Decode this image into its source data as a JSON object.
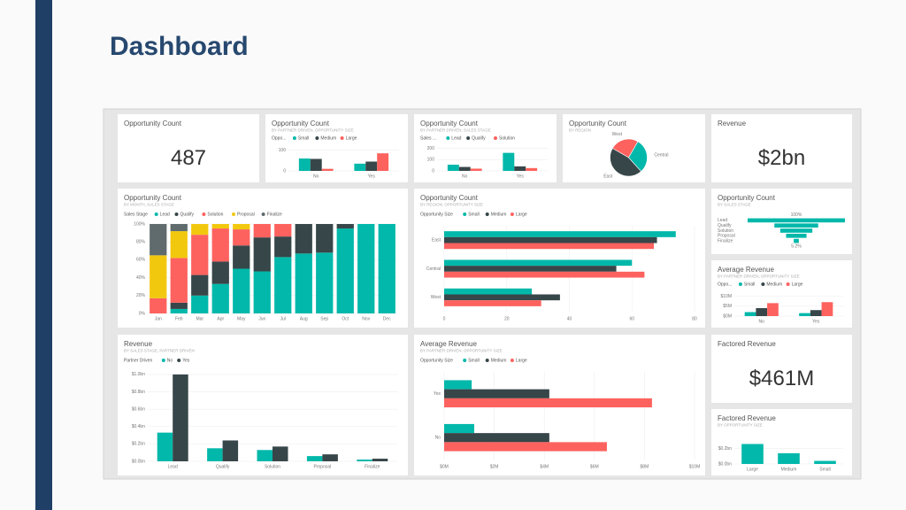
{
  "slide": {
    "title": "Dashboard"
  },
  "tiles": [
    {
      "type": "card",
      "title": "Opportunity Count",
      "value": "487"
    },
    {
      "type": "bar",
      "title": "Opportunity Count",
      "subtitle": "BY PARTNER DRIVEN, OPPORTUNITY SIZE",
      "legend_title": "Oppo...",
      "categories": [
        "No",
        "Yes"
      ],
      "ylim": [
        0,
        120
      ],
      "yticks": [
        0,
        100
      ],
      "series": [
        {
          "name": "Small",
          "color": "#01b8aa",
          "values": [
            60,
            35
          ]
        },
        {
          "name": "Medium",
          "color": "#374649",
          "values": [
            58,
            45
          ]
        },
        {
          "name": "Large",
          "color": "#fd625e",
          "values": [
            10,
            85
          ]
        }
      ]
    },
    {
      "type": "bar",
      "title": "Opportunity Count",
      "subtitle": "BY PARTNER DRIVEN, SALES STAGE",
      "legend_title": "Sales ...",
      "categories": [
        "No",
        "Yes"
      ],
      "ylim": [
        0,
        220
      ],
      "yticks": [
        0,
        100,
        200
      ],
      "series": [
        {
          "name": "Lead",
          "color": "#01b8aa",
          "values": [
            55,
            160
          ]
        },
        {
          "name": "Qualify",
          "color": "#374649",
          "values": [
            35,
            40
          ]
        },
        {
          "name": "Solution",
          "color": "#fd625e",
          "values": [
            20,
            25
          ]
        }
      ]
    },
    {
      "type": "pie",
      "title": "Opportunity Count",
      "subtitle": "BY REGION",
      "categories": [
        "West",
        "Central",
        "East"
      ],
      "values": [
        25,
        30,
        45
      ],
      "colors": [
        "#fd625e",
        "#01b8aa",
        "#374649"
      ]
    },
    {
      "type": "card",
      "title": "Revenue",
      "value": "$2bn"
    },
    {
      "type": "stacked100",
      "title": "Opportunity Count",
      "subtitle": "BY MONTH, SALES STAGE",
      "legend_title": "Sales Stage",
      "categories": [
        "Jan",
        "Feb",
        "Mar",
        "Apr",
        "May",
        "Jun",
        "Jul",
        "Aug",
        "Sep",
        "Oct",
        "Nov",
        "Dec"
      ],
      "ylim": [
        0,
        100
      ],
      "yticks": [
        {
          "value": 0,
          "label": "0%"
        },
        {
          "value": 20,
          "label": "20%"
        },
        {
          "value": 40,
          "label": "40%"
        },
        {
          "value": 60,
          "label": "60%"
        },
        {
          "value": 80,
          "label": "80%"
        },
        {
          "value": 100,
          "label": "100%"
        }
      ],
      "series": [
        {
          "name": "Lead",
          "color": "#01b8aa",
          "values": [
            0,
            5,
            20,
            33,
            50,
            47,
            63,
            67,
            68,
            95,
            100,
            100
          ]
        },
        {
          "name": "Qualify",
          "color": "#374649",
          "values": [
            0,
            7,
            23,
            25,
            26,
            38,
            23,
            33,
            32,
            5,
            0,
            0
          ]
        },
        {
          "name": "Solution",
          "color": "#fd625e",
          "values": [
            17,
            50,
            45,
            37,
            18,
            15,
            14,
            0,
            0,
            0,
            0,
            0
          ]
        },
        {
          "name": "Proposal",
          "color": "#f2c80f",
          "values": [
            48,
            30,
            12,
            5,
            6,
            0,
            0,
            0,
            0,
            0,
            0,
            0
          ]
        },
        {
          "name": "Finalize",
          "color": "#5f6b6d",
          "values": [
            35,
            8,
            0,
            0,
            0,
            0,
            0,
            0,
            0,
            0,
            0,
            0
          ]
        }
      ]
    },
    {
      "type": "hbar",
      "title": "Opportunity Count",
      "subtitle": "BY REGION, OPPORTUNITY SIZE",
      "legend_title": "Opportunity Size",
      "categories": [
        "East",
        "Central",
        "West"
      ],
      "xlim": [
        0,
        80
      ],
      "xticks": [
        0,
        20,
        40,
        60,
        80
      ],
      "series": [
        {
          "name": "Small",
          "color": "#01b8aa",
          "values": [
            74,
            60,
            28
          ]
        },
        {
          "name": "Medium",
          "color": "#374649",
          "values": [
            68,
            55,
            37
          ]
        },
        {
          "name": "Large",
          "color": "#fd625e",
          "values": [
            67,
            64,
            31
          ]
        }
      ]
    },
    {
      "type": "funnel",
      "title": "Opportunity Count",
      "subtitle": "BY SALES STAGE",
      "categories": [
        "Lead",
        "Qualify",
        "Solution",
        "Proposal",
        "Finalize"
      ],
      "values": [
        100,
        45,
        33,
        21,
        5.2
      ],
      "value_labels": [
        "100%",
        null,
        null,
        null,
        "5.2%"
      ],
      "color": "#01b8aa"
    },
    {
      "type": "bar",
      "title": "Average Revenue",
      "subtitle": "BY PARTNER DRIVEN, OPPORTUNITY SIZE",
      "legend_title": "Oppo...",
      "categories": [
        "No",
        "Yes"
      ],
      "ylim": [
        0,
        12
      ],
      "yticks": [
        {
          "value": 0,
          "label": "$0M"
        },
        {
          "value": 5,
          "label": "$5M"
        },
        {
          "value": 10,
          "label": "$10M"
        }
      ],
      "series": [
        {
          "name": "Small",
          "color": "#01b8aa",
          "values": [
            2,
            1.5
          ]
        },
        {
          "name": "Medium",
          "color": "#374649",
          "values": [
            4,
            3
          ]
        },
        {
          "name": "Large",
          "color": "#fd625e",
          "values": [
            6.5,
            7
          ]
        }
      ]
    },
    {
      "type": "bar",
      "title": "Revenue",
      "subtitle": "BY SALES STAGE, PARTNER DRIVEN",
      "legend_title": "Partner Driven",
      "categories": [
        "Lead",
        "Qualify",
        "Solution",
        "Proposal",
        "Finalize"
      ],
      "ylim": [
        0,
        1.05
      ],
      "yticks": [
        {
          "value": 0,
          "label": "$0.0bn"
        },
        {
          "value": 0.2,
          "label": "$0.2bn"
        },
        {
          "value": 0.4,
          "label": "$0.4bn"
        },
        {
          "value": 0.6,
          "label": "$0.6bn"
        },
        {
          "value": 0.8,
          "label": "$0.8bn"
        },
        {
          "value": 1,
          "label": "$1.0bn"
        }
      ],
      "series": [
        {
          "name": "No",
          "color": "#01b8aa",
          "values": [
            0.33,
            0.15,
            0.13,
            0.06,
            0.02
          ]
        },
        {
          "name": "Yes",
          "color": "#374649",
          "values": [
            1.0,
            0.24,
            0.17,
            0.08,
            0.03
          ]
        }
      ]
    },
    {
      "type": "hbar",
      "title": "Average Revenue",
      "subtitle": "BY PARTNER DRIVEN, OPPORTUNITY SIZE",
      "legend_title": "Opportunity Size",
      "categories": [
        "Yes",
        "No"
      ],
      "xlim": [
        0,
        10
      ],
      "xticks": [
        {
          "value": 0,
          "label": "$0M"
        },
        {
          "value": 2,
          "label": "$2M"
        },
        {
          "value": 4,
          "label": "$4M"
        },
        {
          "value": 6,
          "label": "$6M"
        },
        {
          "value": 8,
          "label": "$8M"
        },
        {
          "value": 10,
          "label": "$10M"
        }
      ],
      "series": [
        {
          "name": "Small",
          "color": "#01b8aa",
          "values": [
            1.1,
            1.2
          ]
        },
        {
          "name": "Medium",
          "color": "#374649",
          "values": [
            4.2,
            4.2
          ]
        },
        {
          "name": "Large",
          "color": "#fd625e",
          "values": [
            8.3,
            6.5
          ]
        }
      ]
    },
    {
      "type": "card",
      "title": "Factored Revenue",
      "value": "$461M"
    },
    {
      "type": "bar",
      "title": "Factored Revenue",
      "subtitle": "BY OPPORTUNITY SIZE",
      "categories": [
        "Large",
        "Medium",
        "Small"
      ],
      "ylim": [
        0,
        0.3
      ],
      "yticks": [
        {
          "value": 0,
          "label": "$0.0bn"
        },
        {
          "value": 0.2,
          "label": "$0.2bn"
        }
      ],
      "series": [
        {
          "color": "#01b8aa",
          "values": [
            0.26,
            0.14,
            0.04
          ]
        }
      ]
    }
  ]
}
